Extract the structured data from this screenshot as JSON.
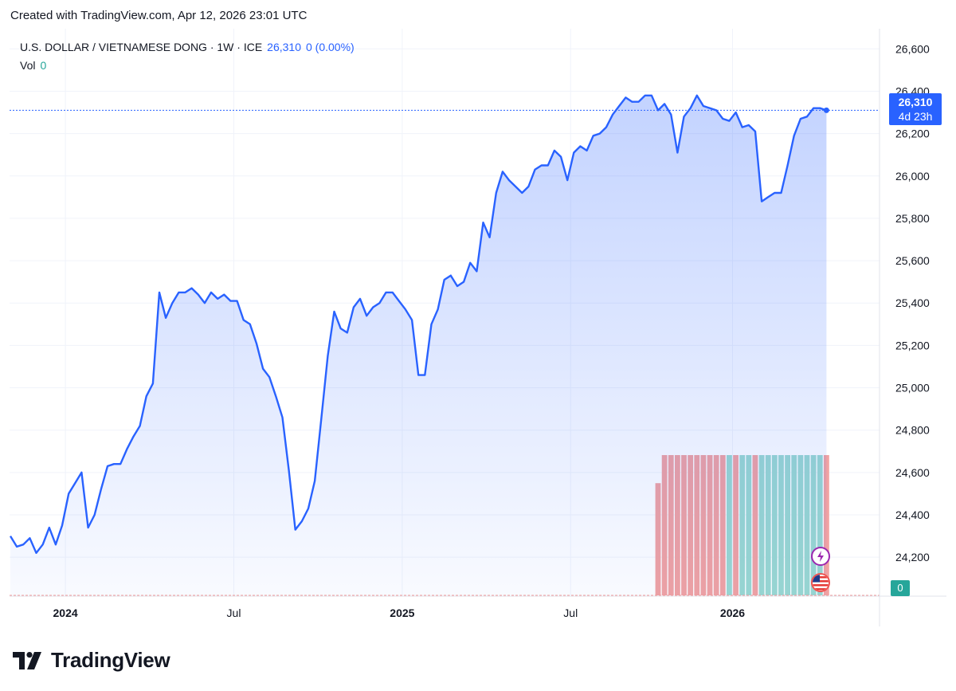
{
  "header": {
    "credit": "Created with TradingView.com, Apr 12, 2026 23:01 UTC"
  },
  "legend": {
    "symbol": "U.S. DOLLAR / VIETNAMESE DONG · 1W · ICE",
    "last": "26,310",
    "change": "0 (0.00%)",
    "vol_label": "Vol",
    "vol_value": "0"
  },
  "price_tag": {
    "price": "26,310",
    "countdown": "4d 23h"
  },
  "vol_tag": {
    "value": "0"
  },
  "brand": {
    "name": "TradingView"
  },
  "colors": {
    "line": "#2962ff",
    "vol_up": "#26a69a",
    "vol_down": "#ef5350",
    "grid": "#f0f3fa"
  },
  "chart_data": {
    "type": "area",
    "y_axis": {
      "min": 24020,
      "max": 26650,
      "ticks": [
        24200,
        24400,
        24600,
        24800,
        25000,
        25200,
        25400,
        25600,
        25800,
        26000,
        26200,
        26400,
        26600
      ],
      "position": "right"
    },
    "x_axis": {
      "ticks": [
        {
          "label": "2024",
          "bold": true,
          "index": 8.5
        },
        {
          "label": "Jul",
          "bold": false,
          "index": 34.5
        },
        {
          "label": "2025",
          "bold": true,
          "index": 60.5
        },
        {
          "label": "Jul",
          "bold": false,
          "index": 86.5
        },
        {
          "label": "2026",
          "bold": true,
          "index": 111.5
        }
      ]
    },
    "last_value": 26310,
    "series": [
      {
        "values": [
          24300,
          24250,
          24260,
          24290,
          24220,
          24260,
          24340,
          24260,
          24350,
          24500,
          24550,
          24600,
          24340,
          24400,
          24520,
          24630,
          24640,
          24640,
          24710,
          24770,
          24820,
          24960,
          25020,
          25450,
          25330,
          25400,
          25450,
          25450,
          25470,
          25440,
          25400,
          25450,
          25420,
          25440,
          25410,
          25410,
          25320,
          25300,
          25210,
          25090,
          25050,
          24960,
          24860,
          24610,
          24330,
          24370,
          24430,
          24560,
          24850,
          25150,
          25360,
          25280,
          25260,
          25380,
          25420,
          25340,
          25380,
          25400,
          25450,
          25450,
          25410,
          25370,
          25320,
          25060,
          25060,
          25300,
          25370,
          25510,
          25530,
          25480,
          25500,
          25590,
          25550,
          25780,
          25710,
          25920,
          26020,
          25980,
          25950,
          25920,
          25950,
          26030,
          26050,
          26050,
          26120,
          26090,
          25980,
          26110,
          26140,
          26120,
          26190,
          26200,
          26230,
          26290,
          26330,
          26370,
          26350,
          26350,
          26380,
          26380,
          26310,
          26340,
          26290,
          26110,
          26280,
          26320,
          26380,
          26330,
          26320,
          26310,
          26270,
          26260,
          26300,
          26230,
          26240,
          26210,
          25880,
          25900,
          25920,
          25920,
          26050,
          26190,
          26270,
          26280,
          26320,
          26320,
          26310
        ]
      }
    ],
    "volume": {
      "first_index": 100,
      "values": [
        0.16,
        0.2,
        0.2,
        0.2,
        0.2,
        0.2,
        0.2,
        0.2,
        0.2,
        0.2,
        0.2,
        0.2,
        0.2,
        0.2,
        0.2,
        0.2,
        0.2,
        0.2,
        0.2,
        0.2,
        0.2,
        0.2,
        0.2,
        0.2,
        0.2,
        0.2,
        0.2
      ],
      "colors": [
        "d",
        "d",
        "d",
        "d",
        "d",
        "d",
        "d",
        "d",
        "d",
        "d",
        "d",
        "u",
        "d",
        "u",
        "u",
        "d",
        "u",
        "u",
        "u",
        "u",
        "u",
        "u",
        "u",
        "u",
        "u",
        "u",
        "d"
      ]
    }
  }
}
